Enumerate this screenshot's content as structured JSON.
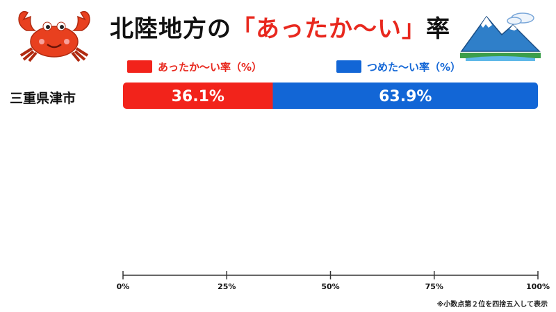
{
  "header": {
    "title_prefix": "北陸地方の",
    "title_highlight": "「あったか〜い」",
    "title_suffix": "率",
    "crab_icon": "crab-icon",
    "mountain_icon": "mountain-icon"
  },
  "colors": {
    "warm": "#f2231b",
    "cold": "#1266d6"
  },
  "footnote": "※小数点第２位を四捨五入して表示",
  "chart_data": {
    "type": "bar",
    "orientation": "horizontal",
    "stacked": true,
    "categories": [
      "三重県津市"
    ],
    "series": [
      {
        "name": "あったか〜い率（%）",
        "values": [
          36.1
        ],
        "labels": [
          "36.1%"
        ],
        "color": "#f2231b"
      },
      {
        "name": "つめた〜い率（%）",
        "values": [
          63.9
        ],
        "labels": [
          "63.9%"
        ],
        "color": "#1266d6"
      }
    ],
    "xlim": [
      0,
      100
    ],
    "xticks": [
      "0%",
      "25%",
      "50%",
      "75%",
      "100%"
    ],
    "legend_position": "top",
    "grid": false
  }
}
